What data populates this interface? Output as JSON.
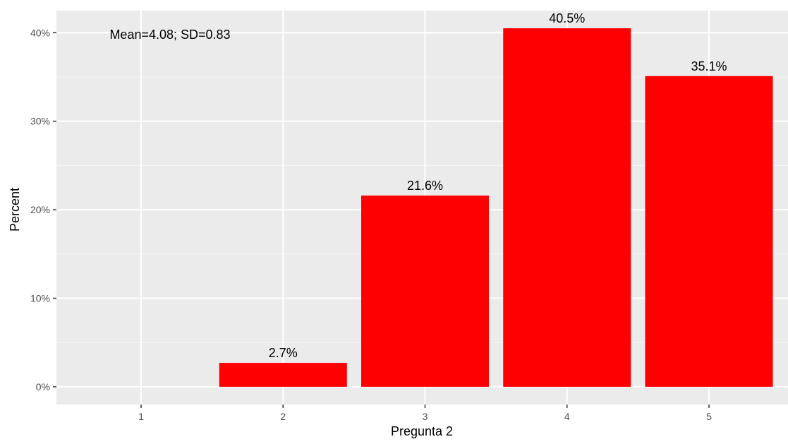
{
  "chart_data": {
    "type": "bar",
    "title": "",
    "xlabel": "Pregunta 2",
    "ylabel": "Percent",
    "categories": [
      "1",
      "2",
      "3",
      "4",
      "5"
    ],
    "values": [
      0.0,
      2.7,
      21.6,
      40.5,
      35.1
    ],
    "data_labels": [
      "",
      "2.7%",
      "21.6%",
      "40.5%",
      "35.1%"
    ],
    "yticks": [
      0,
      10,
      20,
      30,
      40
    ],
    "ytick_labels": [
      "0%",
      "10%",
      "20%",
      "30%",
      "40%"
    ],
    "ylim": [
      -2.0,
      42.5
    ],
    "annotation": "Mean=4.08; SD=0.83",
    "grid": true,
    "legend": "none",
    "colors": {
      "bar": "#ff0000",
      "panel_background": "#ebebeb",
      "grid_major": "#ffffff",
      "grid_minor": "#f5f5f5",
      "axis_text": "#4d4d4d",
      "label_text": "#000000"
    }
  }
}
